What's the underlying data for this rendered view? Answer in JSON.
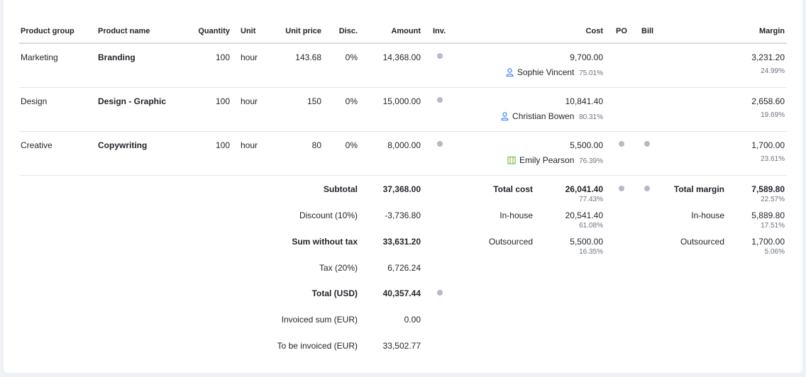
{
  "columns": {
    "product_group": "Product group",
    "product_name": "Product name",
    "quantity": "Quantity",
    "unit": "Unit",
    "unit_price": "Unit price",
    "disc": "Disc.",
    "amount": "Amount",
    "inv": "Inv.",
    "cost": "Cost",
    "po": "PO",
    "bill": "Bill",
    "margin": "Margin"
  },
  "rows": [
    {
      "group": "Marketing",
      "name": "Branding",
      "quantity": "100",
      "unit": "hour",
      "unit_price": "143.68",
      "disc": "0%",
      "amount": "14,368.00",
      "cost": "9,700.00",
      "person": "Sophie Vincent",
      "person_icon": "user-icon",
      "person_pct": "75.01%",
      "margin": "3,231.20",
      "margin_pct": "24.99%"
    },
    {
      "group": "Design",
      "name": "Design - Graphic",
      "quantity": "100",
      "unit": "hour",
      "unit_price": "150",
      "disc": "0%",
      "amount": "15,000.00",
      "cost": "10,841.40",
      "person": "Christian Bowen",
      "person_icon": "user-icon",
      "person_pct": "80.31%",
      "margin": "2,658.60",
      "margin_pct": "19.69%"
    },
    {
      "group": "Creative",
      "name": "Copywriting",
      "quantity": "100",
      "unit": "hour",
      "unit_price": "80",
      "disc": "0%",
      "amount": "8,000.00",
      "cost": "5,500.00",
      "person": "Emily Pearson",
      "person_icon": "building-icon",
      "person_pct": "76.39%",
      "margin": "1,700.00",
      "margin_pct": "23.61%"
    }
  ],
  "summary": {
    "subtotal_label": "Subtotal",
    "subtotal": "37,368.00",
    "discount_label": "Discount (10%)",
    "discount": "-3,736.80",
    "sum_wo_tax_label": "Sum without tax",
    "sum_wo_tax": "33,631.20",
    "tax_label": "Tax (20%)",
    "tax": "6,726.24",
    "total_label": "Total (USD)",
    "total": "40,357.44",
    "invoiced_label": "Invoiced sum (EUR)",
    "invoiced": "0.00",
    "to_invoice_label": "To be invoiced (EUR)",
    "to_invoice": "33,502.77"
  },
  "cost_summary": {
    "total_cost_label": "Total cost",
    "total_cost": "26,041.40",
    "total_cost_pct": "77.43%",
    "inhouse_label": "In-house",
    "inhouse": "20,541.40",
    "inhouse_pct": "61.08%",
    "outsourced_label": "Outsourced",
    "outsourced": "5,500.00",
    "outsourced_pct": "16.35%"
  },
  "margin_summary": {
    "total_margin_label": "Total margin",
    "total_margin": "7,589.80",
    "total_margin_pct": "22.57%",
    "inhouse_label": "In-house",
    "inhouse": "5,889.80",
    "inhouse_pct": "17.51%",
    "outsourced_label": "Outsourced",
    "outsourced": "1,700.00",
    "outsourced_pct": "5.06%"
  },
  "colors": {
    "status_dot": "#b4bbc6",
    "user_icon": "#3b82f6",
    "building_icon": "#7cb342"
  }
}
